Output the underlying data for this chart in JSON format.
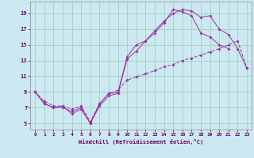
{
  "xlabel": "Windchill (Refroidissement éolien,°C)",
  "bg_color": "#cce8f0",
  "grid_color": "#99ccbb",
  "line_color": "#993399",
  "xlim": [
    -0.5,
    23.5
  ],
  "ylim": [
    4.2,
    20.5
  ],
  "yticks": [
    5,
    7,
    9,
    11,
    13,
    15,
    17,
    19
  ],
  "xticks": [
    0,
    1,
    2,
    3,
    4,
    5,
    6,
    7,
    8,
    9,
    10,
    11,
    12,
    13,
    14,
    15,
    16,
    17,
    18,
    19,
    20,
    21,
    22,
    23
  ],
  "line1_x": [
    0,
    1,
    2,
    3,
    4,
    5,
    6,
    7,
    8,
    9,
    10,
    11,
    12,
    13,
    14,
    15,
    16,
    17,
    18,
    19,
    20,
    21,
    22,
    23
  ],
  "line1_y": [
    9.0,
    7.5,
    7.0,
    7.2,
    6.2,
    6.8,
    5.0,
    7.2,
    8.5,
    8.8,
    13.2,
    14.2,
    15.5,
    16.5,
    17.8,
    19.5,
    19.2,
    18.7,
    16.5,
    16.0,
    15.0,
    14.5,
    null,
    null
  ],
  "line2_x": [
    0,
    1,
    2,
    3,
    4,
    5,
    6,
    7,
    8,
    9,
    10,
    11,
    12,
    13,
    14,
    15,
    16,
    17,
    18,
    19,
    20,
    21,
    22,
    23
  ],
  "line2_y": [
    9.0,
    7.5,
    7.0,
    7.0,
    6.5,
    7.0,
    5.0,
    7.5,
    8.8,
    8.9,
    13.5,
    15.0,
    15.5,
    16.8,
    18.0,
    19.0,
    19.5,
    19.3,
    18.5,
    18.7,
    17.0,
    16.3,
    14.5,
    12.0
  ],
  "line3_x": [
    0,
    1,
    2,
    3,
    4,
    5,
    6,
    7,
    8,
    9,
    10,
    11,
    12,
    13,
    14,
    15,
    16,
    17,
    18,
    19,
    20,
    21,
    22,
    23
  ],
  "line3_y": [
    9.0,
    7.8,
    7.2,
    7.2,
    6.8,
    7.2,
    5.2,
    7.5,
    8.8,
    9.2,
    10.5,
    10.9,
    11.3,
    11.7,
    12.2,
    12.5,
    13.0,
    13.3,
    13.7,
    14.1,
    14.5,
    15.0,
    15.5,
    12.0
  ]
}
